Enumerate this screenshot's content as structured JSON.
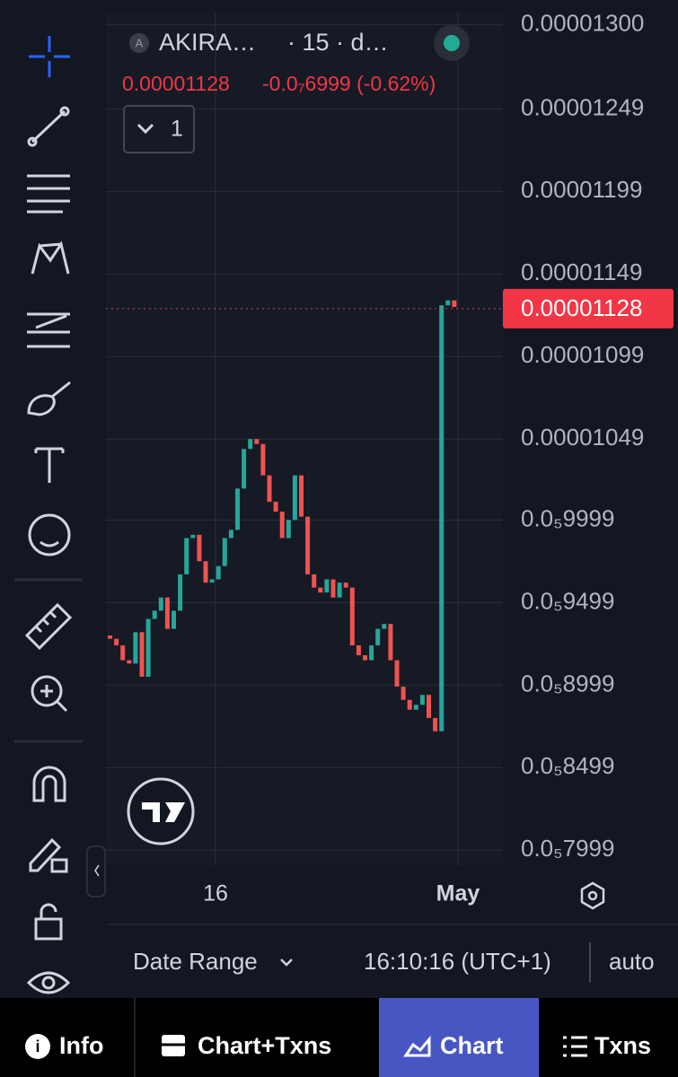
{
  "header": {
    "symbol": "AKIRA…",
    "interval": "· 15 · d…",
    "change": "-0.0₇6999 (-0.62%)",
    "indicator_count": "1"
  },
  "chart_data": {
    "type": "candlestick",
    "current_price": 1.128e-05,
    "open": [
      9.3e-06,
      9.28e-06,
      9.24e-06,
      9.15e-06,
      9.13e-06,
      9.32e-06,
      9.05e-06,
      9.4e-06,
      9.45e-06,
      9.53e-06,
      9.34e-06,
      9.45e-06,
      9.67e-06,
      9.89e-06,
      9.91e-06,
      9.75e-06,
      9.62e-06,
      9.64e-06,
      9.72e-06,
      9.89e-06,
      9.94e-06,
      1.019e-05,
      1.043e-05,
      1.049e-05,
      1.046e-05,
      1.027e-05,
      1.011e-05,
      1.005e-05,
      9.89e-06,
      1e-05,
      1.027e-05,
      1.002e-05,
      9.67e-06,
      9.59e-06,
      9.56e-06,
      9.64e-06,
      9.53e-06,
      9.62e-06,
      9.59e-06,
      9.24e-06,
      9.18e-06,
      9.15e-06,
      9.24e-06,
      9.34e-06,
      9.37e-06,
      9.15e-06,
      8.99e-06,
      8.91e-06,
      8.85e-06,
      8.88e-06,
      8.94e-06,
      8.8e-06,
      8.72e-06,
      1.13e-05,
      1.133e-05
    ],
    "close": [
      9.28e-06,
      9.24e-06,
      9.15e-06,
      9.13e-06,
      9.32e-06,
      9.05e-06,
      9.4e-06,
      9.45e-06,
      9.53e-06,
      9.34e-06,
      9.45e-06,
      9.67e-06,
      9.89e-06,
      9.91e-06,
      9.75e-06,
      9.62e-06,
      9.64e-06,
      9.72e-06,
      9.89e-06,
      9.94e-06,
      1.019e-05,
      1.043e-05,
      1.049e-05,
      1.046e-05,
      1.027e-05,
      1.011e-05,
      1.005e-05,
      9.89e-06,
      1e-05,
      1.027e-05,
      1.002e-05,
      9.67e-06,
      9.59e-06,
      9.56e-06,
      9.64e-06,
      9.53e-06,
      9.62e-06,
      9.59e-06,
      9.24e-06,
      9.18e-06,
      9.15e-06,
      9.24e-06,
      9.34e-06,
      9.37e-06,
      9.15e-06,
      8.99e-06,
      8.91e-06,
      8.85e-06,
      8.88e-06,
      8.94e-06,
      8.8e-06,
      8.72e-06,
      1.13e-05,
      1.133e-05,
      1.129e-05
    ],
    "up_color": "#26a69a",
    "down_color": "#ef5350",
    "ylim": [
      7.93e-06,
      1.315e-05
    ],
    "yticks": [
      {
        "value": 1.3e-05,
        "label": "0.00001300"
      },
      {
        "value": 1.249e-05,
        "label": "0.00001249"
      },
      {
        "value": 1.199e-05,
        "label": "0.00001199"
      },
      {
        "value": 1.149e-05,
        "label": "0.00001149"
      },
      {
        "value": 1.099e-05,
        "label": "0.00001099"
      },
      {
        "value": 1.049e-05,
        "label": "0.00001049"
      },
      {
        "value": 9.999e-06,
        "label": "0.0₅9999"
      },
      {
        "value": 9.499e-06,
        "label": "0.0₅9499"
      },
      {
        "value": 8.999e-06,
        "label": "0.0₅8999"
      },
      {
        "value": 8.499e-06,
        "label": "0.0₅8499"
      },
      {
        "value": 7.999e-06,
        "label": "0.0₅7999"
      }
    ],
    "x_labels": [
      "16",
      "May"
    ]
  },
  "footer": {
    "date_range": "Date Range",
    "time": "16:10:16 (UTC+1)",
    "scale": "auto"
  },
  "nav": [
    "Info",
    "Chart+Txns",
    "Chart",
    "Txns"
  ]
}
